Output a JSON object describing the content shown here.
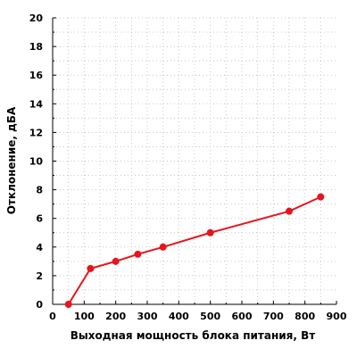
{
  "chart_data": {
    "type": "line",
    "xlabel": "Выходная мощность блока питания, Вт",
    "ylabel": "Отклонение, дБА",
    "xlim": [
      0,
      900
    ],
    "ylim": [
      0,
      20
    ],
    "x_ticks": [
      0,
      100,
      200,
      300,
      400,
      500,
      600,
      700,
      800,
      900
    ],
    "y_ticks": [
      0,
      2,
      4,
      6,
      8,
      10,
      12,
      14,
      16,
      18,
      20
    ],
    "grid": true,
    "series": [
      {
        "color": "#e8141c",
        "points": [
          {
            "x": 50,
            "y": 0
          },
          {
            "x": 120,
            "y": 2.5
          },
          {
            "x": 200,
            "y": 3.0
          },
          {
            "x": 270,
            "y": 3.5
          },
          {
            "x": 350,
            "y": 4.0
          },
          {
            "x": 500,
            "y": 5.0
          },
          {
            "x": 750,
            "y": 6.5
          },
          {
            "x": 850,
            "y": 7.5
          }
        ]
      }
    ]
  }
}
